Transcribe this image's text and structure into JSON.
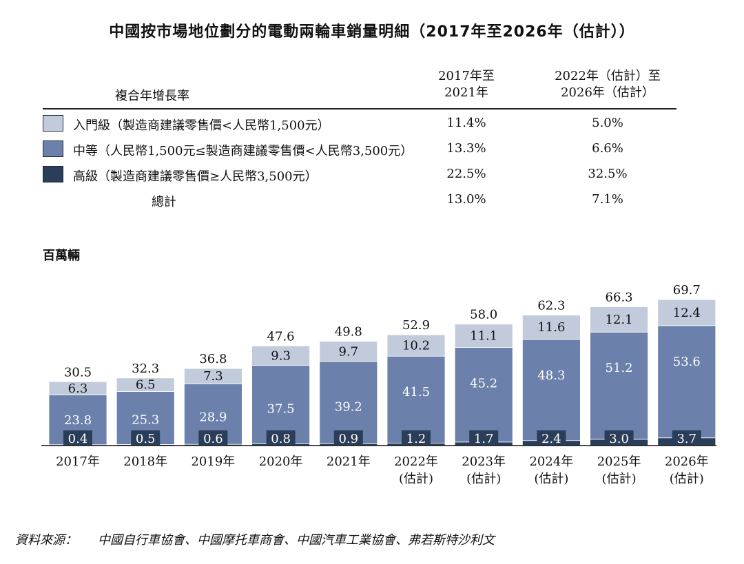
{
  "title": "中國按市場地位劃分的電動兩輪車銷量明細（2017年至2026年（估計））",
  "cagr_table": {
    "header_label": "複合年增長率",
    "col1_header": [
      "2017年至",
      "2021年"
    ],
    "col2_header": [
      "2022年（估計）至",
      "2026年（估計）"
    ],
    "rows": [
      {
        "label": "入門級（製造商建議零售價<人民幣1,500元）",
        "c1": "11.4%",
        "c2": "5.0%",
        "color": "#c2cbdb"
      },
      {
        "label": "中等（人民幣1,500元≤製造商建議零售價<人民幣3,500元）",
        "c1": "13.3%",
        "c2": "6.6%",
        "color": "#6b80aa"
      },
      {
        "label": "高級（製造商建議零售價≥人民幣3,500元）",
        "c1": "22.5%",
        "c2": "32.5%",
        "color": "#2a3d59"
      }
    ],
    "total": {
      "label": "總計",
      "c1": "13.0%",
      "c2": "7.1%"
    }
  },
  "unit_label": "百萬輛",
  "chart_data": {
    "type": "bar",
    "stacked": true,
    "categories": [
      [
        "2017年"
      ],
      [
        "2018年"
      ],
      [
        "2019年"
      ],
      [
        "2020年"
      ],
      [
        "2021年"
      ],
      [
        "2022年",
        "(估計)"
      ],
      [
        "2023年",
        "(估計)"
      ],
      [
        "2024年",
        "(估計)"
      ],
      [
        "2025年",
        "(估計)"
      ],
      [
        "2026年",
        "(估計)"
      ]
    ],
    "series": [
      {
        "name": "高級（製造商建議零售價≥人民幣3,500元）",
        "color": "#2a3d59",
        "values": [
          0.4,
          0.5,
          0.6,
          0.8,
          0.9,
          1.2,
          1.7,
          2.4,
          3.0,
          3.7
        ]
      },
      {
        "name": "中等（人民幣1,500元≤製造商建議零售價<人民幣3,500元）",
        "color": "#6b80aa",
        "values": [
          23.8,
          25.3,
          28.9,
          37.5,
          39.2,
          41.5,
          45.2,
          48.3,
          51.2,
          53.6
        ]
      },
      {
        "name": "入門級（製造商建議零售價<人民幣1,500元）",
        "color": "#c2cbdb",
        "values": [
          6.3,
          6.5,
          7.3,
          9.3,
          9.7,
          10.2,
          11.1,
          11.6,
          12.1,
          12.4
        ]
      }
    ],
    "totals": [
      30.5,
      32.3,
      36.8,
      47.6,
      49.8,
      52.9,
      58.0,
      62.3,
      66.3,
      69.7
    ],
    "ylim": [
      0,
      70
    ],
    "legend": "table-above"
  },
  "source": {
    "label": "資料來源：",
    "text": "中國自行車協會、中國摩托車商會、中國汽車工業協會、弗若斯特沙利文"
  }
}
